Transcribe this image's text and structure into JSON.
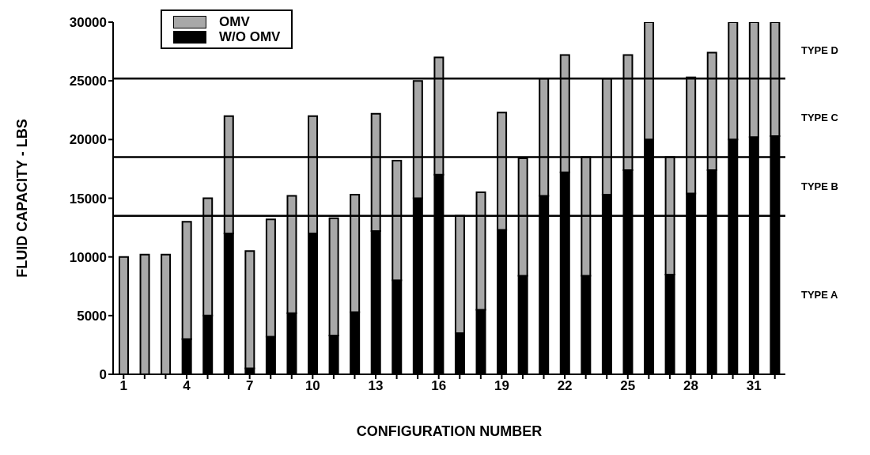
{
  "chart_data": {
    "type": "bar",
    "xlabel": "CONFIGURATION NUMBER",
    "ylabel": "FLUID CAPACITY - LBS",
    "categories": [
      "1",
      null,
      null,
      "4",
      null,
      null,
      "7",
      null,
      null,
      "10",
      null,
      null,
      "13",
      null,
      null,
      "16",
      null,
      null,
      "19",
      null,
      null,
      "22",
      null,
      null,
      "25",
      null,
      null,
      "28",
      null,
      null,
      "31",
      null
    ],
    "stacked": true,
    "series": [
      {
        "name": "W/O OMV",
        "color": "#000000",
        "values": [
          0,
          0,
          0,
          3000,
          5000,
          12000,
          500,
          3200,
          5200,
          12000,
          3300,
          5300,
          12200,
          8000,
          15000,
          17000,
          3500,
          5500,
          12300,
          8400,
          15200,
          17200,
          8400,
          15300,
          17400,
          20000,
          8500,
          15400,
          17400,
          20000,
          20200,
          20300
        ]
      },
      {
        "name": "OMV",
        "color": "#a8a8a8",
        "values": [
          10000,
          10200,
          10200,
          10000,
          10000,
          10000,
          10000,
          10000,
          10000,
          10000,
          10000,
          10000,
          10000,
          10200,
          10000,
          10000,
          10000,
          10000,
          10000,
          10000,
          10000,
          10000,
          10100,
          9900,
          9800,
          10000,
          10000,
          9900,
          10000,
          10000,
          9800,
          9700
        ]
      }
    ],
    "ylim": [
      0,
      30000
    ],
    "yticks": [
      0,
      5000,
      10000,
      15000,
      20000,
      25000,
      30000
    ],
    "grid": false,
    "legend": "top left",
    "ref_lines": [
      {
        "axis": "y",
        "value": 13500
      },
      {
        "axis": "y",
        "value": 18500
      },
      {
        "axis": "y",
        "value": 25200
      }
    ],
    "annotations": [
      "TYPE A",
      "TYPE B",
      "TYPE C",
      "TYPE D"
    ]
  }
}
